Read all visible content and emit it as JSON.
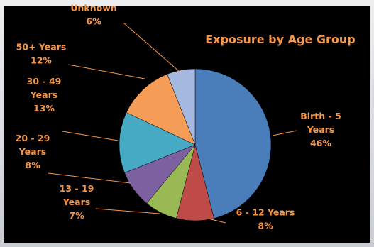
{
  "chart_data": {
    "type": "pie",
    "title": "Exposure by Age Group",
    "slices": [
      {
        "label_lines": [
          "Birth - 5",
          "Years"
        ],
        "percent_label": "46%",
        "value": 46,
        "color": "#4a7ebb"
      },
      {
        "label_lines": [
          "6 - 12 Years"
        ],
        "percent_label": "8%",
        "value": 8,
        "color": "#be4b48"
      },
      {
        "label_lines": [
          "13 - 19",
          "Years"
        ],
        "percent_label": "7%",
        "value": 7,
        "color": "#98b954"
      },
      {
        "label_lines": [
          "20 - 29",
          "Years"
        ],
        "percent_label": "8%",
        "value": 8,
        "color": "#7d60a0"
      },
      {
        "label_lines": [
          "30 - 49",
          "Years"
        ],
        "percent_label": "13%",
        "value": 13,
        "color": "#46aac4"
      },
      {
        "label_lines": [
          "50+ Years"
        ],
        "percent_label": "12%",
        "value": 12,
        "color": "#f59d56"
      },
      {
        "label_lines": [
          "Unknown"
        ],
        "percent_label": "6%",
        "value": 6,
        "color": "#a5b8e0"
      }
    ],
    "label_color": "#f79646",
    "background": "#000000",
    "legend": "none"
  }
}
